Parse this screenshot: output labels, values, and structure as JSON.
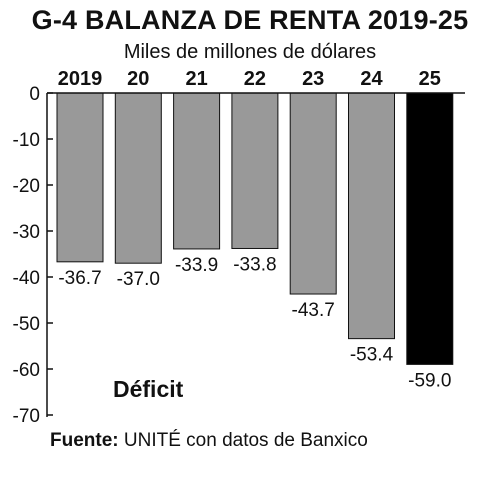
{
  "chart_data": {
    "type": "bar",
    "title": "G-4 BALANZA DE RENTA 2019-25",
    "subtitle": "Miles de millones de dólares",
    "categories": [
      "2019",
      "20",
      "21",
      "22",
      "23",
      "24",
      "25"
    ],
    "values": [
      -36.7,
      -37.0,
      -33.9,
      -33.8,
      -43.7,
      -53.4,
      -59.0
    ],
    "value_labels": [
      "-36.7",
      "-37.0",
      "-33.9",
      "-33.8",
      "-43.7",
      "-53.4",
      "-59.0"
    ],
    "ylim": [
      -70,
      0
    ],
    "yticks": [
      "0",
      "-10",
      "-20",
      "-30",
      "-40",
      "-50",
      "-60",
      "-70"
    ],
    "grid": false,
    "annotation": "Déficit",
    "colors": {
      "bar": "#999999",
      "highlight": "#000000",
      "highlight_index": 6
    }
  },
  "source": {
    "label": "Fuente:",
    "text": " UNITÉ con datos de Banxico"
  }
}
